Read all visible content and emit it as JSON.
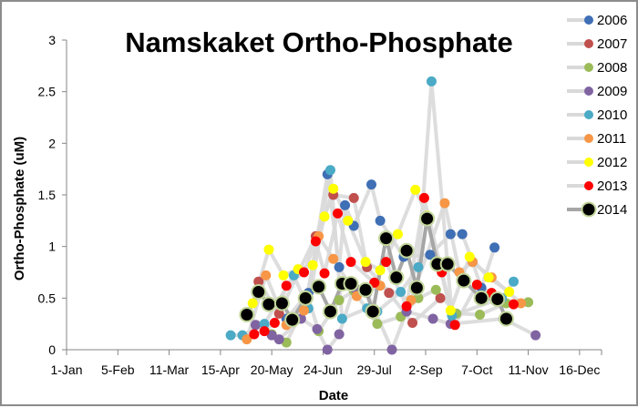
{
  "chart_data": {
    "type": "line",
    "title": "Namskaket Ortho-Phosphate",
    "xlabel": "Date",
    "ylabel": "Ortho-Phosphate  (uM)",
    "xlim": [
      0,
      365
    ],
    "ylim": [
      0,
      3
    ],
    "x_unit": "day of year",
    "x_ticks": [
      0,
      35,
      70,
      105,
      140,
      175,
      210,
      245,
      280,
      315,
      350
    ],
    "x_tick_labels": [
      "1-Jan",
      "5-Feb",
      "11-Mar",
      "15-Apr",
      "20-May",
      "24-Jun",
      "29-Jul",
      "2-Sep",
      "7-Oct",
      "11-Nov",
      "16-Dec"
    ],
    "y_ticks": [
      0,
      0.5,
      1,
      1.5,
      2,
      2.5,
      3
    ],
    "y_tick_labels": [
      "0",
      "0.5",
      "1",
      "1.5",
      "2",
      "2.5",
      "3"
    ],
    "grid": false,
    "legend_position": "right",
    "series": [
      {
        "name": "2006",
        "color": "#3f6fb5",
        "line": "#d9d9d9",
        "x": [
          150,
          165,
          178,
          186,
          190,
          196,
          208,
          214,
          230,
          248,
          262,
          270,
          277,
          283,
          292
        ],
        "y": [
          0.3,
          0.55,
          1.7,
          0.8,
          1.4,
          1.2,
          1.6,
          1.25,
          0.9,
          0.92,
          1.12,
          1.12,
          0.85,
          0.6,
          0.99
        ]
      },
      {
        "name": "2007",
        "color": "#c0504d",
        "line": "#d9d9d9",
        "x": [
          131,
          145,
          170,
          182,
          196,
          205,
          220,
          236,
          255
        ],
        "y": [
          0.66,
          0.35,
          1.1,
          1.5,
          1.47,
          0.8,
          0.55,
          0.26,
          0.5
        ]
      },
      {
        "name": "2008",
        "color": "#9bbb59",
        "line": "#d9d9d9",
        "x": [
          140,
          150,
          165,
          172,
          186,
          196,
          212,
          228,
          240,
          252,
          266,
          282,
          300,
          315
        ],
        "y": [
          0.15,
          0.07,
          0.5,
          0.18,
          0.48,
          0.57,
          0.25,
          0.32,
          0.5,
          0.58,
          0.35,
          0.34,
          0.45,
          0.46
        ]
      },
      {
        "name": "2009",
        "color": "#8064a2",
        "line": "#d9d9d9",
        "x": [
          129,
          140,
          145,
          160,
          171,
          178,
          186,
          196,
          205,
          222,
          232,
          250,
          262,
          298,
          320
        ],
        "y": [
          0.24,
          0.14,
          0.1,
          0.3,
          0.2,
          0.0,
          0.15,
          0.6,
          0.55,
          0.0,
          0.37,
          0.3,
          0.25,
          0.3,
          0.14
        ]
      },
      {
        "name": "2010",
        "color": "#4baac6",
        "line": "#d9d9d9",
        "x": [
          112,
          120,
          135,
          155,
          165,
          180,
          188,
          205,
          212,
          228,
          240,
          249,
          263,
          297,
          305
        ],
        "y": [
          0.14,
          0.14,
          0.25,
          0.72,
          0.4,
          1.74,
          0.3,
          0.4,
          0.37,
          0.56,
          0.8,
          2.6,
          0.33,
          0.5,
          0.66
        ]
      },
      {
        "name": "2011",
        "color": "#f79646",
        "line": "#d9d9d9",
        "x": [
          123,
          136,
          150,
          162,
          172,
          182,
          198,
          214,
          235,
          258,
          268,
          277,
          290,
          310
        ],
        "y": [
          0.1,
          0.72,
          0.24,
          0.38,
          1.1,
          0.88,
          0.52,
          0.62,
          0.48,
          1.42,
          0.75,
          0.85,
          0.7,
          0.45
        ]
      },
      {
        "name": "2012",
        "color": "#ffff00",
        "line": "#d9d9d9",
        "x": [
          127,
          138,
          148,
          158,
          168,
          176,
          182,
          192,
          204,
          214,
          226,
          238,
          246,
          262,
          275,
          288,
          302
        ],
        "y": [
          0.45,
          0.97,
          0.72,
          0.78,
          0.82,
          1.29,
          1.56,
          1.25,
          0.85,
          0.77,
          1.12,
          1.55,
          1.3,
          0.38,
          0.9,
          0.7,
          0.56
        ]
      },
      {
        "name": "2013",
        "color": "#ff0000",
        "line": "#d9d9d9",
        "x": [
          128,
          135,
          142,
          150,
          162,
          170,
          176,
          185,
          194,
          210,
          218,
          232,
          244,
          256,
          265,
          280,
          290,
          305
        ],
        "y": [
          0.15,
          0.18,
          0.26,
          0.62,
          0.75,
          1.05,
          0.74,
          1.32,
          0.85,
          0.65,
          0.85,
          0.42,
          1.47,
          0.75,
          0.24,
          0.63,
          0.55,
          0.44
        ]
      },
      {
        "name": "2014",
        "color": "#000000",
        "line": "#a6a6a6",
        "outline": "#c3d69b",
        "x": [
          123,
          131,
          138,
          147,
          154,
          163,
          172,
          180,
          188,
          194,
          204,
          209,
          218,
          225,
          232,
          239,
          246,
          253,
          260,
          271,
          283,
          294,
          300
        ],
        "y": [
          0.34,
          0.56,
          0.44,
          0.45,
          0.29,
          0.5,
          0.61,
          0.37,
          0.64,
          0.64,
          0.58,
          0.37,
          1.08,
          0.7,
          0.96,
          0.6,
          1.27,
          0.83,
          0.83,
          0.67,
          0.5,
          0.49,
          0.3
        ]
      }
    ]
  }
}
